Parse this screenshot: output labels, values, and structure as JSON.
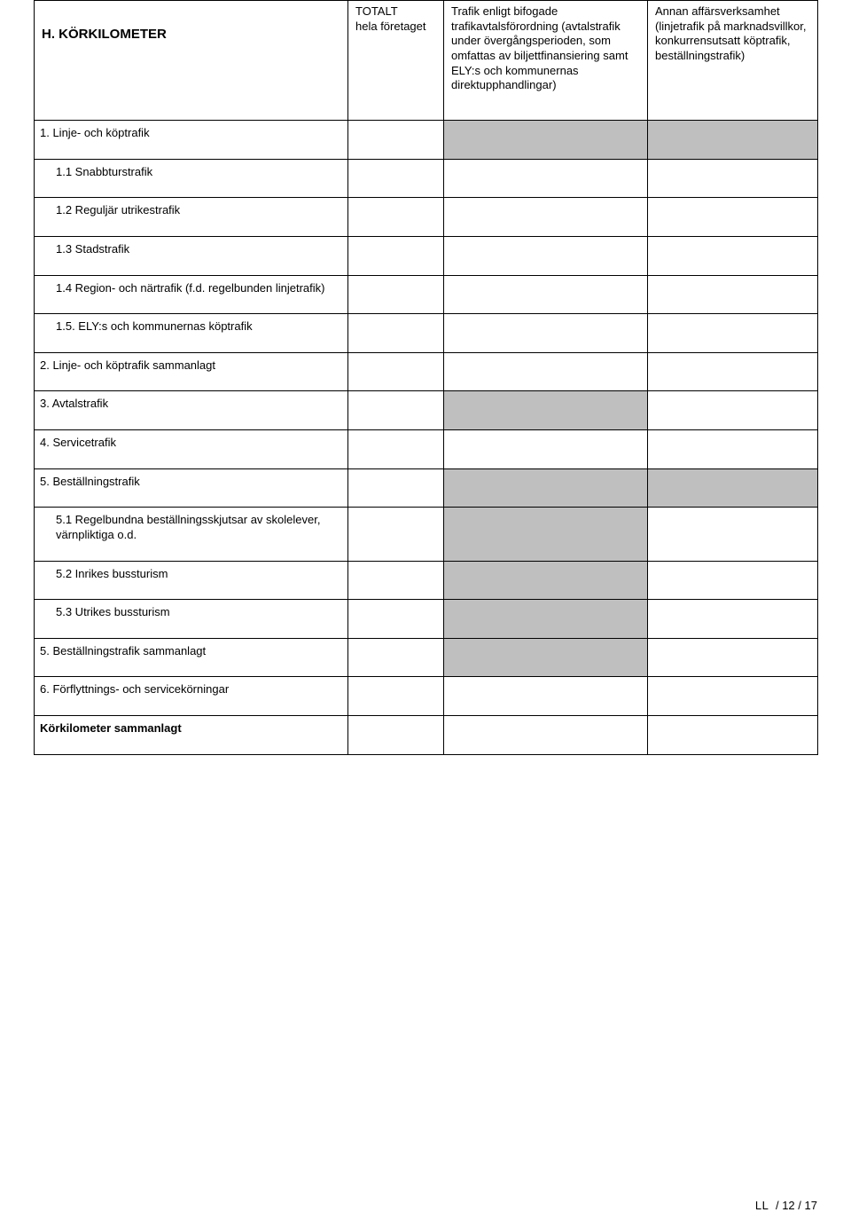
{
  "header": {
    "title": "H. KÖRKILOMETER",
    "col1": "TOTALT\nhela företaget",
    "col2": "Trafik enligt bifogade trafikavtalsförordning (avtalstrafik under övergångsperioden, som omfattas av biljettfinansiering samt ELY:s och kommunernas direktupphandlingar)",
    "col3": "Annan affärsverksamhet (linjetrafik på marknadsvillkor, konkurrensutsatt köptrafik, beställningstrafik)"
  },
  "rows": {
    "r1": "1. Linje- och köptrafik",
    "r11": "1.1 Snabbturstrafik",
    "r12": "1.2 Reguljär utrikestrafik",
    "r13": "1.3 Stadstrafik",
    "r14": "1.4 Region- och närtrafik (f.d. regelbunden linjetrafik)",
    "r15": "1.5. ELY:s och kommunernas köptrafik",
    "r2": "2. Linje- och köptrafik sammanlagt",
    "r3": "3. Avtalstrafik",
    "r4": "4. Servicetrafik",
    "r5": "5. Beställningstrafik",
    "r51": "5.1 Regelbundna beställningsskjutsar av skolelever, värnpliktiga o.d.",
    "r52": "5.2 Inrikes bussturism",
    "r53": "5.3 Utrikes bussturism",
    "r5b": "5. Beställningstrafik sammanlagt",
    "r6": "6. Förflyttnings- och servicekörningar",
    "rs": "Körkilometer sammanlagt"
  },
  "footer": {
    "left": "LL",
    "sep1": "/",
    "page": "12",
    "sep2": "/",
    "total": "17"
  },
  "colors": {
    "gray": "#bfbfbf",
    "border": "#000000",
    "bg": "#ffffff"
  }
}
